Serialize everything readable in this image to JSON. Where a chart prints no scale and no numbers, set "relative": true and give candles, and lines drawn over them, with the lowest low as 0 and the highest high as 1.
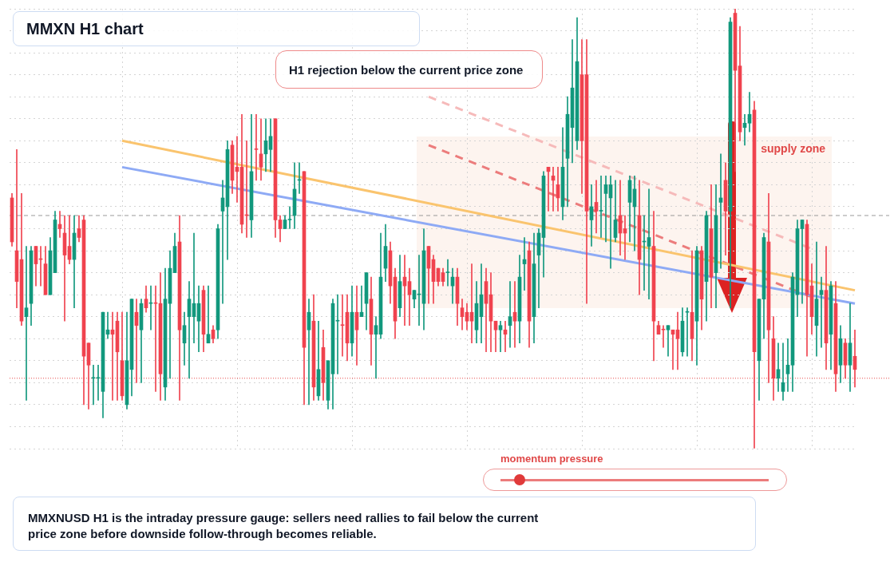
{
  "chart_data": {
    "type": "candlestick",
    "title": "MMXN H1 chart",
    "relative": true,
    "legend": false,
    "tick_labels": false,
    "grid": true,
    "colors": [
      "#f0434f",
      "#f0434f",
      "#f0434f",
      "#12987d",
      "#12987d",
      "#f0434f",
      "#f0434f",
      "#f0434f",
      "#12987d",
      "#12987d",
      "#f0434f",
      "#f0434f",
      "#f0434f",
      "#12987d",
      "#f0434f",
      "#f0434f",
      "#f0434f",
      "#12987d",
      "#12987d",
      "#12987d",
      "#12987d",
      "#f0434f",
      "#f0434f",
      "#f0434f",
      "#12987d",
      "#12987d",
      "#f0434f",
      "#12987d",
      "#f0434f",
      "#12987d",
      "#f0434f",
      "#f0434f",
      "#12987d",
      "#12987d",
      "#12987d",
      "#f0434f",
      "#12987d",
      "#12987d",
      "#12987d",
      "#12987d",
      "#f0434f",
      "#12987d",
      "#f0434f",
      "#12987d",
      "#12987d",
      "#12987d",
      "#f0434f",
      "#f0434f",
      "#f0434f",
      "#f0434f",
      "#12987d",
      "#f0434f",
      "#f0434f",
      "#12987d",
      "#12987d",
      "#f0434f",
      "#f0434f",
      "#12987d",
      "#12987d",
      "#12987d",
      "#12987d",
      "#f0434f",
      "#12987d",
      "#f0434f",
      "#12987d",
      "#f0434f",
      "#12987d",
      "#12987d",
      "#12987d",
      "#f0434f",
      "#f0434f",
      "#12987d",
      "#f0434f",
      "#12987d",
      "#12987d",
      "#f0434f",
      "#12987d",
      "#12987d",
      "#12987d",
      "#f0434f",
      "#f0434f",
      "#12987d",
      "#f0434f",
      "#f0434f",
      "#12987d",
      "#12987d",
      "#12987d",
      "#f0434f",
      "#f0434f",
      "#f0434f",
      "#f0434f",
      "#12987d",
      "#12987d",
      "#f0434f",
      "#f0434f",
      "#f0434f",
      "#f0434f",
      "#12987d",
      "#12987d",
      "#f0434f",
      "#f0434f",
      "#f0434f",
      "#12987d",
      "#f0434f",
      "#12987d",
      "#f0434f",
      "#12987d",
      "#12987d",
      "#f0434f",
      "#12987d",
      "#12987d",
      "#12987d",
      "#f0434f",
      "#f0434f",
      "#f0434f",
      "#12987d",
      "#12987d",
      "#12987d",
      "#12987d",
      "#f0434f",
      "#f0434f",
      "#12987d",
      "#f0434f",
      "#12987d",
      "#12987d",
      "#12987d",
      "#12987d",
      "#f0434f",
      "#f0434f",
      "#12987d",
      "#12987d",
      "#f0434f",
      "#12987d",
      "#12987d",
      "#f0434f",
      "#f0434f",
      "#f0434f",
      "#12987d",
      "#f0434f",
      "#f0434f",
      "#12987d",
      "#12987d",
      "#f0434f",
      "#12987d",
      "#f0434f",
      "#12987d",
      "#f0434f",
      "#12987d",
      "#12987d",
      "#f0434f",
      "#12987d",
      "#f0434f",
      "#f0434f",
      "#12987d",
      "#12987d",
      "#f0434f",
      "#12987d",
      "#12987d",
      "#f0434f",
      "#f0434f",
      "#12987d",
      "#12987d",
      "#12987d",
      "#12987d",
      "#12987d",
      "#12987d",
      "#f0434f",
      "#f0434f",
      "#12987d",
      "#12987d",
      "#f0434f",
      "#12987d",
      "#f0434f",
      "#12987d",
      "#f0434f",
      "#12987d",
      "#f0434f"
    ],
    "categories": [
      null,
      null,
      null,
      null,
      null,
      null,
      null,
      null,
      null,
      null,
      null,
      null,
      null,
      null,
      null,
      null,
      null,
      null,
      null,
      null,
      null,
      null,
      null,
      null,
      null,
      null,
      null,
      null,
      null,
      null,
      null,
      null,
      null,
      null,
      null,
      null,
      null,
      null,
      null,
      null,
      null,
      null,
      null,
      null,
      null,
      null,
      null,
      null,
      null,
      null,
      null,
      null,
      null,
      null,
      null,
      null,
      null,
      null,
      null,
      null,
      null,
      null,
      null,
      null,
      null,
      null,
      null,
      null,
      null,
      null,
      null,
      null,
      null,
      null,
      null,
      null,
      null,
      null,
      null,
      null,
      null,
      null,
      null,
      null,
      null,
      null,
      null,
      null,
      null,
      null,
      null,
      null,
      null,
      null,
      null,
      null,
      null,
      null,
      null,
      null,
      null,
      null,
      null,
      null,
      null,
      null,
      null,
      null,
      null,
      null,
      null,
      null,
      null,
      null,
      null,
      null,
      null,
      null,
      null,
      null,
      null,
      null,
      null,
      null,
      null,
      null,
      null,
      null,
      null,
      null,
      null,
      null,
      null,
      null,
      null,
      null,
      null,
      null,
      null,
      null,
      null,
      null,
      null,
      null,
      null,
      null,
      null,
      null,
      null,
      null,
      null,
      null,
      null,
      null,
      null,
      null,
      null,
      null,
      null,
      null,
      null,
      null,
      null,
      null,
      null,
      null,
      null,
      null,
      null,
      null,
      null,
      null,
      null,
      null,
      null,
      null,
      null
    ],
    "ohlc": [
      [
        0.57,
        0.58,
        0.46,
        0.47
      ],
      [
        0.45,
        0.68,
        0.32,
        0.38
      ],
      [
        0.43,
        0.58,
        0.28,
        0.29
      ],
      [
        0.3,
        0.46,
        0.11,
        0.32
      ],
      [
        0.33,
        0.46,
        0.28,
        0.45
      ],
      [
        0.46,
        0.46,
        0.37,
        0.42
      ],
      [
        0.43,
        0.46,
        0.37,
        0.43
      ],
      [
        0.42,
        0.46,
        0.35,
        0.35
      ],
      [
        0.35,
        0.48,
        0.35,
        0.45
      ],
      [
        0.4,
        0.54,
        0.4,
        0.52
      ],
      [
        0.51,
        0.54,
        0.48,
        0.5
      ],
      [
        0.49,
        0.53,
        0.29,
        0.44
      ],
      [
        0.46,
        0.53,
        0.42,
        0.43
      ],
      [
        0.43,
        0.53,
        0.32,
        0.49
      ],
      [
        0.5,
        0.53,
        0.47,
        0.48
      ],
      [
        0.52,
        0.53,
        0.1,
        0.21
      ],
      [
        0.24,
        0.24,
        0.09,
        0.19
      ],
      [
        0.16,
        0.19,
        0.1,
        0.16
      ],
      [
        0.16,
        0.19,
        0.11,
        0.16
      ],
      [
        0.13,
        0.31,
        0.07,
        0.31
      ],
      [
        0.26,
        0.31,
        0.25,
        0.27
      ],
      [
        0.27,
        0.31,
        0.11,
        0.26
      ],
      [
        0.29,
        0.31,
        0.11,
        0.22
      ],
      [
        0.2,
        0.31,
        0.11,
        0.12
      ],
      [
        0.1,
        0.31,
        0.09,
        0.2
      ],
      [
        0.18,
        0.34,
        0.12,
        0.34
      ],
      [
        0.31,
        0.34,
        0.15,
        0.28
      ],
      [
        0.27,
        0.34,
        0.15,
        0.33
      ],
      [
        0.34,
        0.37,
        0.31,
        0.32
      ],
      [
        0.33,
        0.37,
        0.27,
        0.33
      ],
      [
        0.33,
        0.37,
        0.13,
        0.33
      ],
      [
        0.33,
        0.4,
        0.11,
        0.17
      ],
      [
        0.14,
        0.41,
        0.11,
        0.34
      ],
      [
        0.33,
        0.45,
        0.16,
        0.41
      ],
      [
        0.4,
        0.49,
        0.4,
        0.46
      ],
      [
        0.47,
        0.53,
        0.11,
        0.27
      ],
      [
        0.24,
        0.31,
        0.19,
        0.28
      ],
      [
        0.3,
        0.38,
        0.16,
        0.34
      ],
      [
        0.3,
        0.49,
        0.24,
        0.33
      ],
      [
        0.29,
        0.37,
        0.22,
        0.33
      ],
      [
        0.36,
        0.37,
        0.22,
        0.26
      ],
      [
        0.24,
        0.37,
        0.24,
        0.26
      ],
      [
        0.27,
        0.28,
        0.24,
        0.25
      ],
      [
        0.27,
        0.51,
        0.25,
        0.5
      ],
      [
        0.54,
        0.61,
        0.33,
        0.57
      ],
      [
        0.55,
        0.7,
        0.43,
        0.68
      ],
      [
        0.69,
        0.7,
        0.58,
        0.61
      ],
      [
        0.64,
        0.71,
        0.56,
        0.63
      ],
      [
        0.64,
        0.76,
        0.49,
        0.51
      ],
      [
        0.53,
        0.7,
        0.48,
        0.53
      ],
      [
        0.52,
        0.76,
        0.48,
        0.63
      ],
      [
        0.68,
        0.76,
        0.61,
        0.68
      ],
      [
        0.67,
        0.75,
        0.61,
        0.64
      ],
      [
        0.67,
        0.75,
        0.63,
        0.7
      ],
      [
        0.68,
        0.75,
        0.63,
        0.71
      ],
      [
        0.75,
        0.75,
        0.48,
        0.52
      ],
      [
        0.52,
        0.53,
        0.47,
        0.5
      ],
      [
        0.5,
        0.53,
        0.5,
        0.52
      ],
      [
        0.52,
        0.55,
        0.5,
        0.52
      ],
      [
        0.53,
        0.65,
        0.5,
        0.59
      ],
      [
        0.61,
        0.65,
        0.58,
        0.61
      ],
      [
        0.63,
        0.63,
        0.1,
        0.23
      ],
      [
        0.27,
        0.34,
        0.1,
        0.31
      ],
      [
        0.29,
        0.35,
        0.11,
        0.14
      ],
      [
        0.12,
        0.29,
        0.11,
        0.18
      ],
      [
        0.23,
        0.27,
        0.11,
        0.15
      ],
      [
        0.11,
        0.2,
        0.09,
        0.2
      ],
      [
        0.17,
        0.34,
        0.09,
        0.33
      ],
      [
        0.29,
        0.35,
        0.17,
        0.29
      ],
      [
        0.28,
        0.35,
        0.21,
        0.28
      ],
      [
        0.31,
        0.35,
        0.2,
        0.24
      ],
      [
        0.24,
        0.37,
        0.21,
        0.31
      ],
      [
        0.31,
        0.37,
        0.19,
        0.27
      ],
      [
        0.3,
        0.37,
        0.3,
        0.31
      ],
      [
        0.33,
        0.4,
        0.27,
        0.4
      ],
      [
        0.34,
        0.39,
        0.19,
        0.26
      ],
      [
        0.26,
        0.3,
        0.16,
        0.28
      ],
      [
        0.26,
        0.49,
        0.25,
        0.39
      ],
      [
        0.41,
        0.51,
        0.38,
        0.46
      ],
      [
        0.45,
        0.47,
        0.33,
        0.37
      ],
      [
        0.39,
        0.41,
        0.25,
        0.29
      ],
      [
        0.32,
        0.44,
        0.3,
        0.38
      ],
      [
        0.39,
        0.44,
        0.28,
        0.37
      ],
      [
        0.38,
        0.41,
        0.28,
        0.35
      ],
      [
        0.34,
        0.36,
        0.32,
        0.36
      ],
      [
        0.35,
        0.44,
        0.28,
        0.35
      ],
      [
        0.33,
        0.5,
        0.27,
        0.45
      ],
      [
        0.46,
        0.46,
        0.33,
        0.41
      ],
      [
        0.43,
        0.44,
        0.33,
        0.38
      ],
      [
        0.41,
        0.41,
        0.37,
        0.38
      ],
      [
        0.4,
        0.41,
        0.37,
        0.38
      ],
      [
        0.4,
        0.43,
        0.37,
        0.4
      ],
      [
        0.37,
        0.41,
        0.33,
        0.39
      ],
      [
        0.39,
        0.41,
        0.28,
        0.33
      ],
      [
        0.32,
        0.34,
        0.27,
        0.3
      ],
      [
        0.31,
        0.33,
        0.27,
        0.29
      ],
      [
        0.31,
        0.42,
        0.24,
        0.29
      ],
      [
        0.27,
        0.38,
        0.24,
        0.33
      ],
      [
        0.3,
        0.42,
        0.24,
        0.35
      ],
      [
        0.38,
        0.41,
        0.22,
        0.33
      ],
      [
        0.35,
        0.4,
        0.22,
        0.29
      ],
      [
        0.29,
        0.29,
        0.22,
        0.27
      ],
      [
        0.27,
        0.29,
        0.22,
        0.28
      ],
      [
        0.27,
        0.29,
        0.22,
        0.26
      ],
      [
        0.28,
        0.38,
        0.23,
        0.3
      ],
      [
        0.31,
        0.38,
        0.23,
        0.29
      ],
      [
        0.29,
        0.44,
        0.24,
        0.39
      ],
      [
        0.42,
        0.48,
        0.36,
        0.43
      ],
      [
        0.45,
        0.47,
        0.23,
        0.29
      ],
      [
        0.3,
        0.49,
        0.24,
        0.42
      ],
      [
        0.44,
        0.5,
        0.32,
        0.49
      ],
      [
        0.48,
        0.63,
        0.39,
        0.62
      ],
      [
        0.64,
        0.64,
        0.54,
        0.63
      ],
      [
        0.62,
        0.64,
        0.54,
        0.61
      ],
      [
        0.6,
        0.64,
        0.54,
        0.57
      ],
      [
        0.55,
        0.73,
        0.52,
        0.64
      ],
      [
        0.66,
        0.8,
        0.55,
        0.76
      ],
      [
        0.73,
        0.93,
        0.65,
        0.82
      ],
      [
        0.7,
        0.98,
        0.68,
        0.88
      ],
      [
        0.85,
        0.93,
        0.58,
        0.7
      ],
      [
        0.85,
        0.93,
        0.33,
        0.54
      ],
      [
        0.52,
        0.6,
        0.46,
        0.55
      ],
      [
        0.56,
        0.61,
        0.49,
        0.54
      ],
      [
        0.54,
        0.62,
        0.48,
        0.54
      ],
      [
        0.58,
        0.62,
        0.47,
        0.6
      ],
      [
        0.57,
        0.62,
        0.41,
        0.6
      ],
      [
        0.48,
        0.61,
        0.47,
        0.52
      ],
      [
        0.53,
        0.61,
        0.44,
        0.49
      ],
      [
        0.5,
        0.53,
        0.43,
        0.49
      ],
      [
        0.56,
        0.62,
        0.47,
        0.61
      ],
      [
        0.55,
        0.62,
        0.45,
        0.59
      ],
      [
        0.53,
        0.61,
        0.35,
        0.43
      ],
      [
        0.47,
        0.53,
        0.36,
        0.47
      ],
      [
        0.46,
        0.59,
        0.34,
        0.48
      ],
      [
        0.46,
        0.54,
        0.2,
        0.29
      ],
      [
        0.28,
        0.29,
        0.26,
        0.26
      ],
      [
        0.27,
        0.28,
        0.23,
        0.27
      ],
      [
        0.27,
        0.28,
        0.21,
        0.28
      ],
      [
        0.27,
        0.27,
        0.18,
        0.26
      ],
      [
        0.27,
        0.31,
        0.18,
        0.25
      ],
      [
        0.22,
        0.32,
        0.21,
        0.29
      ],
      [
        0.31,
        0.32,
        0.21,
        0.31
      ],
      [
        0.31,
        0.45,
        0.2,
        0.25
      ],
      [
        0.29,
        0.46,
        0.19,
        0.45
      ],
      [
        0.45,
        0.46,
        0.27,
        0.34
      ],
      [
        0.38,
        0.54,
        0.29,
        0.53
      ],
      [
        0.5,
        0.6,
        0.32,
        0.39
      ],
      [
        0.4,
        0.6,
        0.32,
        0.53
      ],
      [
        0.56,
        0.67,
        0.41,
        0.57
      ],
      [
        0.61,
        0.65,
        0.44,
        0.54
      ],
      [
        0.54,
        0.98,
        0.32,
        0.97
      ],
      [
        0.99,
        1.0,
        0.63,
        0.86
      ],
      [
        0.87,
        0.96,
        0.7,
        0.72
      ],
      [
        0.73,
        0.76,
        0.69,
        0.74
      ],
      [
        0.74,
        0.81,
        0.72,
        0.76
      ],
      [
        0.77,
        0.79,
        0,
        0.22
      ],
      [
        0.2,
        0.34,
        0.11,
        0.34
      ],
      [
        0.34,
        0.49,
        0.25,
        0.48
      ],
      [
        0.47,
        0.58,
        0.15,
        0.27
      ],
      [
        0.25,
        0.3,
        0.11,
        0.16
      ],
      [
        0.16,
        0.24,
        0.13,
        0.18
      ],
      [
        0.13,
        0.24,
        0.11,
        0.15
      ],
      [
        0.17,
        0.25,
        0.13,
        0.19
      ],
      [
        0.19,
        0.4,
        0.13,
        0.39
      ],
      [
        0.35,
        0.52,
        0.3,
        0.5
      ],
      [
        0.5,
        0.52,
        0.33,
        0.52
      ],
      [
        0.51,
        0.52,
        0.21,
        0.35
      ],
      [
        0.37,
        0.42,
        0.26,
        0.3
      ],
      [
        0.28,
        0.47,
        0.21,
        0.34
      ],
      [
        0.35,
        0.39,
        0.23,
        0.36
      ],
      [
        0.36,
        0.46,
        0.18,
        0.24
      ],
      [
        0.26,
        0.38,
        0.18,
        0.37
      ],
      [
        0.33,
        0.38,
        0.13,
        0.17
      ],
      [
        0.19,
        0.28,
        0.15,
        0.25
      ],
      [
        0.24,
        0.25,
        0.16,
        0.19
      ],
      [
        0.19,
        0.33,
        0.13,
        0.24
      ],
      [
        0.21,
        0.27,
        0.14,
        0.18
      ]
    ],
    "series": [
      {
        "type": "line",
        "color": "#fac46e",
        "values": [
          null,
          null,
          null,
          null,
          null,
          null,
          null,
          null,
          null,
          null,
          null,
          null,
          null,
          null,
          null,
          null,
          null,
          null,
          null,
          null,
          null,
          null,
          null,
          0.7,
          null,
          null,
          null,
          null,
          null,
          null,
          null,
          null,
          null,
          null,
          null,
          null,
          null,
          null,
          null,
          null,
          null,
          null,
          null,
          null,
          null,
          null,
          null,
          null,
          null,
          null,
          null,
          null,
          null,
          null,
          null,
          null,
          null,
          null,
          null,
          null,
          null,
          null,
          null,
          null,
          null,
          null,
          null,
          null,
          null,
          null,
          null,
          null,
          null,
          null,
          null,
          null,
          null,
          null,
          null,
          null,
          null,
          null,
          null,
          null,
          null,
          null,
          null,
          null,
          null,
          null,
          null,
          null,
          null,
          null,
          null,
          null,
          null,
          null,
          null,
          null,
          null,
          null,
          null,
          null,
          null,
          null,
          null,
          null,
          null,
          null,
          null,
          null,
          null,
          null,
          null,
          null,
          null,
          null,
          null,
          null,
          null,
          null,
          null,
          null,
          null,
          null,
          null,
          null,
          null,
          null,
          null,
          null,
          null,
          null,
          null,
          null,
          null,
          null,
          null,
          null,
          null,
          null,
          null,
          null,
          null,
          null,
          null,
          null,
          null,
          null,
          null,
          null,
          null,
          null,
          null,
          null,
          null,
          null,
          null,
          null,
          null,
          null,
          null,
          null,
          null,
          null,
          null,
          null,
          null,
          null,
          null,
          null,
          null,
          null,
          null,
          null,
          0.36
        ]
      },
      {
        "type": "line",
        "color": "#8eaaf5",
        "values": [
          null,
          null,
          null,
          null,
          null,
          null,
          null,
          null,
          null,
          null,
          null,
          null,
          null,
          null,
          null,
          null,
          null,
          null,
          null,
          null,
          null,
          null,
          null,
          0.64,
          null,
          null,
          null,
          null,
          null,
          null,
          null,
          null,
          null,
          null,
          null,
          null,
          null,
          null,
          null,
          null,
          null,
          null,
          null,
          null,
          null,
          null,
          null,
          null,
          null,
          null,
          null,
          null,
          null,
          null,
          null,
          null,
          null,
          null,
          null,
          null,
          null,
          null,
          null,
          null,
          null,
          null,
          null,
          null,
          null,
          null,
          null,
          null,
          null,
          null,
          null,
          null,
          null,
          null,
          null,
          null,
          null,
          null,
          null,
          null,
          null,
          null,
          null,
          null,
          null,
          null,
          null,
          null,
          null,
          null,
          null,
          null,
          null,
          null,
          null,
          null,
          null,
          null,
          null,
          null,
          null,
          null,
          null,
          null,
          null,
          null,
          null,
          null,
          null,
          null,
          null,
          null,
          null,
          null,
          null,
          null,
          null,
          null,
          null,
          null,
          null,
          null,
          null,
          null,
          null,
          null,
          null,
          null,
          null,
          null,
          null,
          null,
          null,
          null,
          null,
          null,
          null,
          null,
          null,
          null,
          null,
          null,
          null,
          null,
          null,
          null,
          null,
          null,
          null,
          null,
          null,
          null,
          null,
          null,
          null,
          null,
          null,
          null,
          null,
          null,
          null,
          null,
          null,
          null,
          null,
          null,
          null,
          null,
          null,
          null,
          null,
          null,
          0.33
        ]
      },
      {
        "type": "line",
        "color": "#ec7c7c",
        "line_style": "dashed",
        "values": [
          null,
          null,
          null,
          null,
          null,
          null,
          null,
          null,
          null,
          null,
          null,
          null,
          null,
          null,
          null,
          null,
          null,
          null,
          null,
          null,
          null,
          null,
          null,
          null,
          null,
          null,
          null,
          null,
          null,
          null,
          null,
          null,
          null,
          null,
          null,
          null,
          null,
          null,
          null,
          null,
          null,
          null,
          null,
          null,
          null,
          null,
          null,
          null,
          null,
          null,
          null,
          null,
          null,
          null,
          null,
          null,
          null,
          null,
          null,
          null,
          null,
          null,
          null,
          null,
          null,
          null,
          null,
          null,
          null,
          null,
          null,
          null,
          null,
          null,
          null,
          null,
          null,
          null,
          null,
          null,
          null,
          null,
          null,
          null,
          null,
          null,
          null,
          0.69,
          null,
          null,
          null,
          null,
          null,
          null,
          null,
          null,
          null,
          null,
          null,
          null,
          null,
          null,
          null,
          null,
          null,
          null,
          null,
          null,
          null,
          null,
          null,
          null,
          null,
          null,
          null,
          null,
          null,
          null,
          null,
          null,
          null,
          null,
          null,
          null,
          null,
          null,
          null,
          null,
          null,
          null,
          null,
          null,
          null,
          null,
          null,
          null,
          null,
          null,
          null,
          null,
          null,
          null,
          null,
          null,
          null,
          null,
          null,
          null,
          null,
          null,
          null,
          null,
          null,
          null,
          null,
          null,
          null,
          null,
          null,
          null,
          null,
          null,
          null,
          null,
          null,
          null,
          null,
          null,
          0.34,
          null,
          null,
          null,
          null,
          null,
          null,
          null,
          null
        ]
      },
      {
        "type": "line",
        "color": "#f6baba",
        "line_style": "dashed",
        "values": [
          null,
          null,
          null,
          null,
          null,
          null,
          null,
          null,
          null,
          null,
          null,
          null,
          null,
          null,
          null,
          null,
          null,
          null,
          null,
          null,
          null,
          null,
          null,
          null,
          null,
          null,
          null,
          null,
          null,
          null,
          null,
          null,
          null,
          null,
          null,
          null,
          null,
          null,
          null,
          null,
          null,
          null,
          null,
          null,
          null,
          null,
          null,
          null,
          null,
          null,
          null,
          null,
          null,
          null,
          null,
          null,
          null,
          null,
          null,
          null,
          null,
          null,
          null,
          null,
          null,
          null,
          null,
          null,
          null,
          null,
          null,
          null,
          null,
          null,
          null,
          null,
          null,
          null,
          null,
          null,
          null,
          null,
          null,
          null,
          null,
          null,
          null,
          0.8,
          null,
          null,
          null,
          null,
          null,
          null,
          null,
          null,
          null,
          null,
          null,
          null,
          null,
          null,
          null,
          null,
          null,
          null,
          null,
          null,
          null,
          null,
          null,
          null,
          null,
          null,
          null,
          null,
          null,
          null,
          null,
          null,
          null,
          null,
          null,
          null,
          null,
          null,
          null,
          null,
          null,
          null,
          null,
          null,
          null,
          null,
          null,
          null,
          null,
          null,
          null,
          null,
          null,
          null,
          null,
          null,
          null,
          null,
          null,
          null,
          null,
          null,
          null,
          null,
          null,
          null,
          null,
          null,
          null,
          null,
          null,
          null,
          null,
          null,
          null,
          null,
          null,
          null,
          null,
          null,
          0.45,
          null,
          null,
          null,
          null,
          null,
          null,
          null,
          null
        ]
      }
    ],
    "ref_lines": [
      {
        "axis": "y",
        "value": 0.53,
        "color": "#9a9a9a",
        "line_style": "dashed"
      },
      {
        "axis": "y",
        "value": 0.16,
        "color": "#e84a4a",
        "line_style": "dotted"
      }
    ],
    "bands": [
      {
        "axis": "y",
        "from": 0.32,
        "to": 0.71,
        "label": "supply zone",
        "color": "#fdf4ef"
      }
    ],
    "annotations": [
      "H1 rejection below the current price zone",
      "momentum pressure",
      "MMXNUSD H1 is the intraday pressure gauge: sellers need rallies to fail below the current price zone before downside follow-through becomes reliable."
    ]
  }
}
